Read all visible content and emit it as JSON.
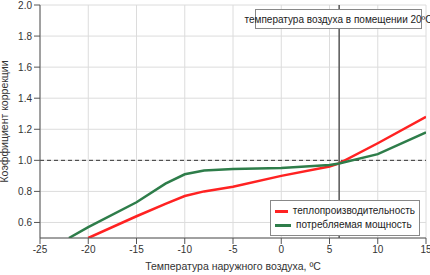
{
  "chart_data": {
    "type": "line",
    "annotation": "температура воздуха в помещении 20ºC",
    "xlabel": "Температура наружного воздуха, ºC",
    "ylabel": "Коэффициент коррекции",
    "x": [
      -22,
      -20,
      -15,
      -12,
      -10,
      -8,
      -5,
      0,
      5,
      6,
      10,
      15
    ],
    "series": [
      {
        "name": "теплопроизводительность",
        "color": "#ff2222",
        "values": [
          null,
          0.5,
          0.64,
          0.72,
          0.77,
          0.8,
          0.83,
          0.9,
          0.96,
          0.98,
          1.11,
          1.28
        ]
      },
      {
        "name": "потребляемая мощность",
        "color": "#2e7d4a",
        "values": [
          0.5,
          0.57,
          0.73,
          0.85,
          0.91,
          0.935,
          0.945,
          0.95,
          0.97,
          0.98,
          1.04,
          1.18
        ]
      }
    ],
    "xlim": [
      -25,
      15
    ],
    "xticks": [
      -25,
      -20,
      -15,
      -10,
      -5,
      0,
      5,
      10,
      15
    ],
    "ylim": [
      0.5,
      2.0
    ],
    "yticks": [
      0.6,
      0.8,
      {
        "value": 1,
        "label": "1.0"
      },
      1.2,
      1.4,
      1.6,
      1.8,
      {
        "value": 2,
        "label": "2.0"
      }
    ],
    "ref_y": 1,
    "ref_x": 6,
    "grid": true,
    "legend": "lower right"
  }
}
